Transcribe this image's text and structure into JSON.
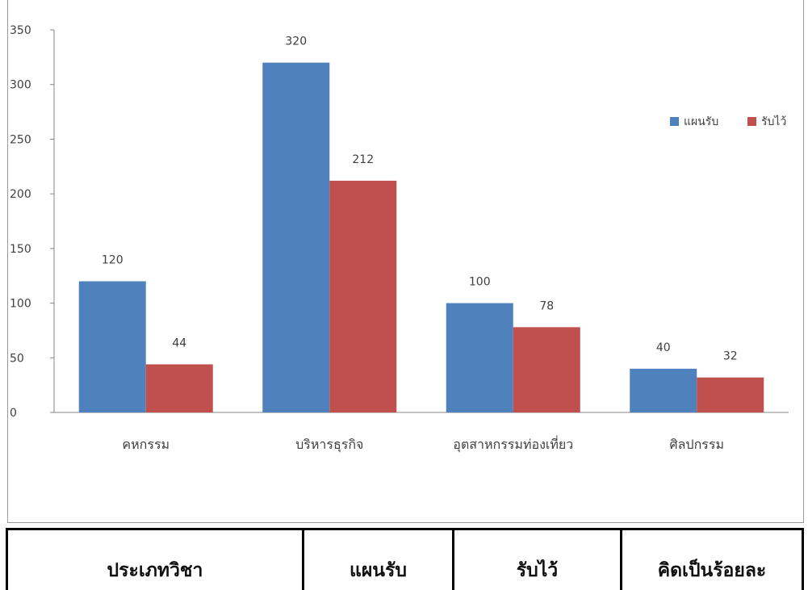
{
  "chart_data": {
    "type": "bar",
    "categories": [
      "คหกรรม",
      "บริหารธุรกิจ",
      "อุตสาหกรรมท่องเที่ยว",
      "ศิลปกรรม"
    ],
    "series": [
      {
        "name": "แผนรับ",
        "values": [
          120,
          320,
          100,
          40
        ],
        "color": "#4f81bd"
      },
      {
        "name": "รับไว้",
        "values": [
          44,
          212,
          78,
          32
        ],
        "color": "#c0504d"
      }
    ],
    "ylim": [
      0,
      350
    ],
    "yticks": [
      0,
      50,
      100,
      150,
      200,
      250,
      300,
      350
    ],
    "data_labels": true,
    "legend": "right",
    "grid": false
  },
  "table": {
    "headers": [
      "ประเภทวิชา",
      "แผนรับ",
      "รับไว้",
      "คิดเป็นร้อยละ"
    ]
  }
}
